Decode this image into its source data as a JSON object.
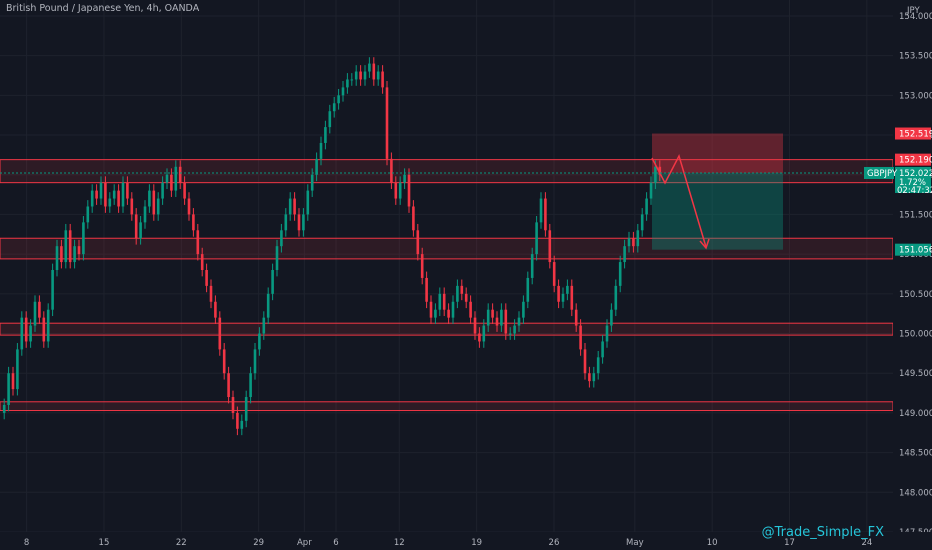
{
  "chart_data": {
    "type": "candlestick",
    "title": "British Pound / Japanese Yen, 4h, OANDA",
    "currency": "JPY",
    "ylim": [
      147.5,
      154.1
    ],
    "y_ticks": [
      "154.000",
      "153.500",
      "153.000",
      "152.500",
      "152.000",
      "151.500",
      "151.000",
      "150.500",
      "150.000",
      "149.500",
      "149.000",
      "148.500",
      "148.000",
      "147.500"
    ],
    "y_tick_values": [
      154.0,
      153.5,
      153.0,
      152.5,
      152.0,
      151.5,
      151.0,
      150.5,
      150.0,
      149.5,
      149.0,
      148.5,
      148.0,
      147.5
    ],
    "x_ticks": [
      "8",
      "15",
      "22",
      "29",
      "Apr",
      "6",
      "12",
      "19",
      "26",
      "May",
      "10",
      "17",
      "24"
    ],
    "x_tick_index": [
      7,
      29,
      51,
      73,
      86,
      95,
      113,
      135,
      157,
      180,
      202,
      224,
      246
    ],
    "bars_total": 254,
    "grid": true,
    "closes": [
      149.1,
      149.5,
      149.3,
      149.8,
      150.2,
      149.9,
      150.1,
      150.4,
      150.2,
      149.9,
      150.3,
      150.8,
      151.1,
      150.9,
      151.3,
      150.9,
      151.1,
      151.0,
      151.4,
      151.6,
      151.8,
      151.7,
      151.9,
      151.6,
      151.7,
      151.8,
      151.6,
      151.9,
      151.7,
      151.5,
      151.2,
      151.4,
      151.6,
      151.8,
      151.5,
      151.7,
      151.9,
      152.0,
      151.8,
      152.1,
      151.9,
      151.7,
      151.5,
      151.3,
      151.0,
      150.8,
      150.6,
      150.4,
      150.2,
      149.8,
      149.5,
      149.2,
      149.0,
      148.8,
      148.9,
      149.2,
      149.5,
      149.8,
      150.0,
      150.2,
      150.5,
      150.8,
      151.1,
      151.3,
      151.5,
      151.7,
      151.5,
      151.3,
      151.5,
      151.8,
      152.0,
      152.2,
      152.4,
      152.6,
      152.8,
      152.9,
      153.0,
      153.1,
      153.2,
      153.2,
      153.3,
      153.2,
      153.3,
      153.4,
      153.2,
      153.3,
      153.1,
      152.2,
      151.9,
      151.7,
      151.9,
      152.0,
      151.6,
      151.3,
      151.0,
      150.7,
      150.4,
      150.2,
      150.3,
      150.5,
      150.3,
      150.2,
      150.4,
      150.6,
      150.5,
      150.4,
      150.2,
      150.0,
      149.9,
      150.1,
      150.3,
      150.2,
      150.1,
      150.3,
      150.0,
      150.0,
      150.1,
      150.2,
      150.4,
      150.7,
      151.0,
      151.4,
      151.7,
      151.3,
      150.9,
      150.6,
      150.4,
      150.5,
      150.6,
      150.3,
      150.1,
      149.8,
      149.5,
      149.4,
      149.5,
      149.7,
      149.9,
      150.1,
      150.3,
      150.6,
      150.9,
      151.1,
      151.2,
      151.1,
      151.3,
      151.5,
      151.7,
      151.9,
      152.1,
      152.0
    ],
    "current_price": 152.022,
    "current_change": "1.72%",
    "countdown": "02:47:32",
    "symbol": "GBPJPY",
    "zones": [
      {
        "from": 151.9,
        "to": 152.19,
        "color": "#f23645"
      },
      {
        "from": 150.94,
        "to": 151.2,
        "color": "#f23645"
      },
      {
        "from": 149.98,
        "to": 150.13,
        "color": "#f23645"
      },
      {
        "from": 149.03,
        "to": 149.14,
        "color": "#f23645"
      }
    ],
    "position": {
      "entry": 152.022,
      "stop": 152.519,
      "target": 151.056
    },
    "price_labels": [
      {
        "value": 152.519,
        "text": "152.519",
        "color": "#f23645"
      },
      {
        "value": 152.19,
        "text": "152.190",
        "color": "#f23645"
      },
      {
        "value": 151.056,
        "text": "151.056",
        "color": "#089981"
      }
    ],
    "watermark": "@Trade_Simple_FX"
  }
}
